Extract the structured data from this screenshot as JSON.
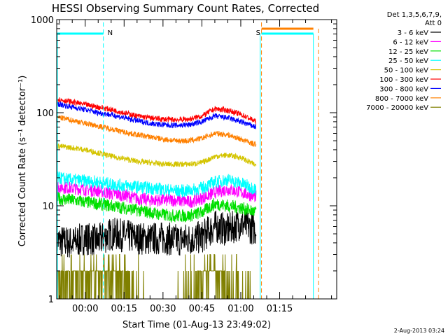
{
  "chart_data": {
    "type": "line",
    "title": "HESSI Observing Summary Count Rates, Corrected",
    "xlabel": "Start Time (01-Aug-13 23:49:02)",
    "ylabel": "Corrected Count Rate (s⁻¹ detector⁻¹)",
    "x_unit": "minutes since 2013-08-02 00:00",
    "xlim": [
      -11,
      97
    ],
    "ylim": [
      1,
      1000
    ],
    "yscale": "log",
    "x_ticks": [
      {
        "value": 0,
        "label": "00:00"
      },
      {
        "value": 15,
        "label": "00:15"
      },
      {
        "value": 30,
        "label": "00:30"
      },
      {
        "value": 45,
        "label": "00:45"
      },
      {
        "value": 60,
        "label": "01:00"
      },
      {
        "value": 75,
        "label": "01:15"
      }
    ],
    "y_ticks": [
      {
        "value": 1,
        "label": "1"
      },
      {
        "value": 10,
        "label": "10"
      },
      {
        "value": 100,
        "label": "100"
      },
      {
        "value": 1000,
        "label": "1000"
      }
    ],
    "legend": {
      "placement": "right",
      "header": [
        "Det 1,3,5,6,7,9,",
        "Att 0"
      ],
      "entries": [
        {
          "label": "3 - 6 keV",
          "color": "#000000"
        },
        {
          "label": "6 - 12 keV",
          "color": "#ff00ff"
        },
        {
          "label": "12 - 25 keV",
          "color": "#00e000"
        },
        {
          "label": "25 - 50 keV",
          "color": "#00ffff"
        },
        {
          "label": "50 - 100 keV",
          "color": "#d4c400"
        },
        {
          "label": "100 - 300 keV",
          "color": "#ff0000"
        },
        {
          "label": "300 - 800 keV",
          "color": "#0000ff"
        },
        {
          "label": "800 - 7000 keV",
          "color": "#ff8000"
        },
        {
          "label": "7000 - 20000 keV",
          "color": "#808000"
        }
      ]
    },
    "series_x": [
      -11,
      -5,
      0,
      5,
      10,
      15,
      20,
      25,
      30,
      35,
      40,
      45,
      50,
      55,
      60,
      66
    ],
    "series": [
      {
        "name": "3 - 6 keV",
        "color": "#000000",
        "values": [
          4.2,
          4.0,
          4.5,
          4.2,
          5.0,
          4.8,
          4.5,
          4.4,
          4.5,
          4.3,
          4.4,
          4.6,
          6.0,
          5.5,
          6.5,
          5.5
        ]
      },
      {
        "name": "6 - 12 keV",
        "color": "#ff00ff",
        "values": [
          16,
          15.5,
          15,
          14.5,
          13.5,
          13,
          12,
          11.5,
          11.5,
          11.5,
          11,
          12,
          14,
          15,
          14,
          12.5
        ]
      },
      {
        "name": "12 - 25 keV",
        "color": "#00e000",
        "values": [
          12,
          11.5,
          11,
          10.5,
          10,
          9.5,
          9,
          8.5,
          8.0,
          7.8,
          7.8,
          8.5,
          10.5,
          10,
          9.5,
          8.5
        ]
      },
      {
        "name": "25 - 50 keV",
        "color": "#00ffff",
        "values": [
          20,
          19,
          18.5,
          18,
          17,
          16.5,
          16,
          15.5,
          15,
          14.5,
          14.5,
          15.5,
          18,
          19,
          17.5,
          15
        ]
      },
      {
        "name": "50 - 100 keV",
        "color": "#d4c400",
        "values": [
          44,
          42,
          40,
          37,
          34,
          32,
          30,
          29,
          28,
          28,
          28,
          29,
          34,
          35,
          33,
          27
        ]
      },
      {
        "name": "100 - 300 keV",
        "color": "#ff0000",
        "values": [
          140,
          130,
          122,
          115,
          108,
          100,
          92,
          88,
          85,
          84,
          85,
          92,
          110,
          106,
          96,
          80
        ]
      },
      {
        "name": "300 - 800 keV",
        "color": "#0000ff",
        "values": [
          125,
          115,
          108,
          100,
          95,
          88,
          82,
          77,
          74,
          73,
          74,
          80,
          92,
          88,
          80,
          70
        ]
      },
      {
        "name": "800 - 7000 keV",
        "color": "#ff8000",
        "values": [
          90,
          83,
          77,
          72,
          67,
          62,
          58,
          55,
          52,
          50,
          50,
          53,
          60,
          58,
          52,
          45
        ]
      },
      {
        "name": "7000 - 20000 keV",
        "color": "#808000",
        "values": [
          1.6,
          1.5,
          1.6,
          1.8,
          1.7,
          1.5,
          1.1,
          1.0,
          1.0,
          1.0,
          1.1,
          1.7,
          1.9,
          1.5,
          1.1,
          1.0
        ]
      }
    ],
    "annotations": [
      {
        "label": "N",
        "x": 7,
        "color": "#00ffff"
      },
      {
        "label": "S",
        "x": 68,
        "color": "#ff8000"
      }
    ],
    "timestamp": "2-Aug-2013 03:24"
  }
}
